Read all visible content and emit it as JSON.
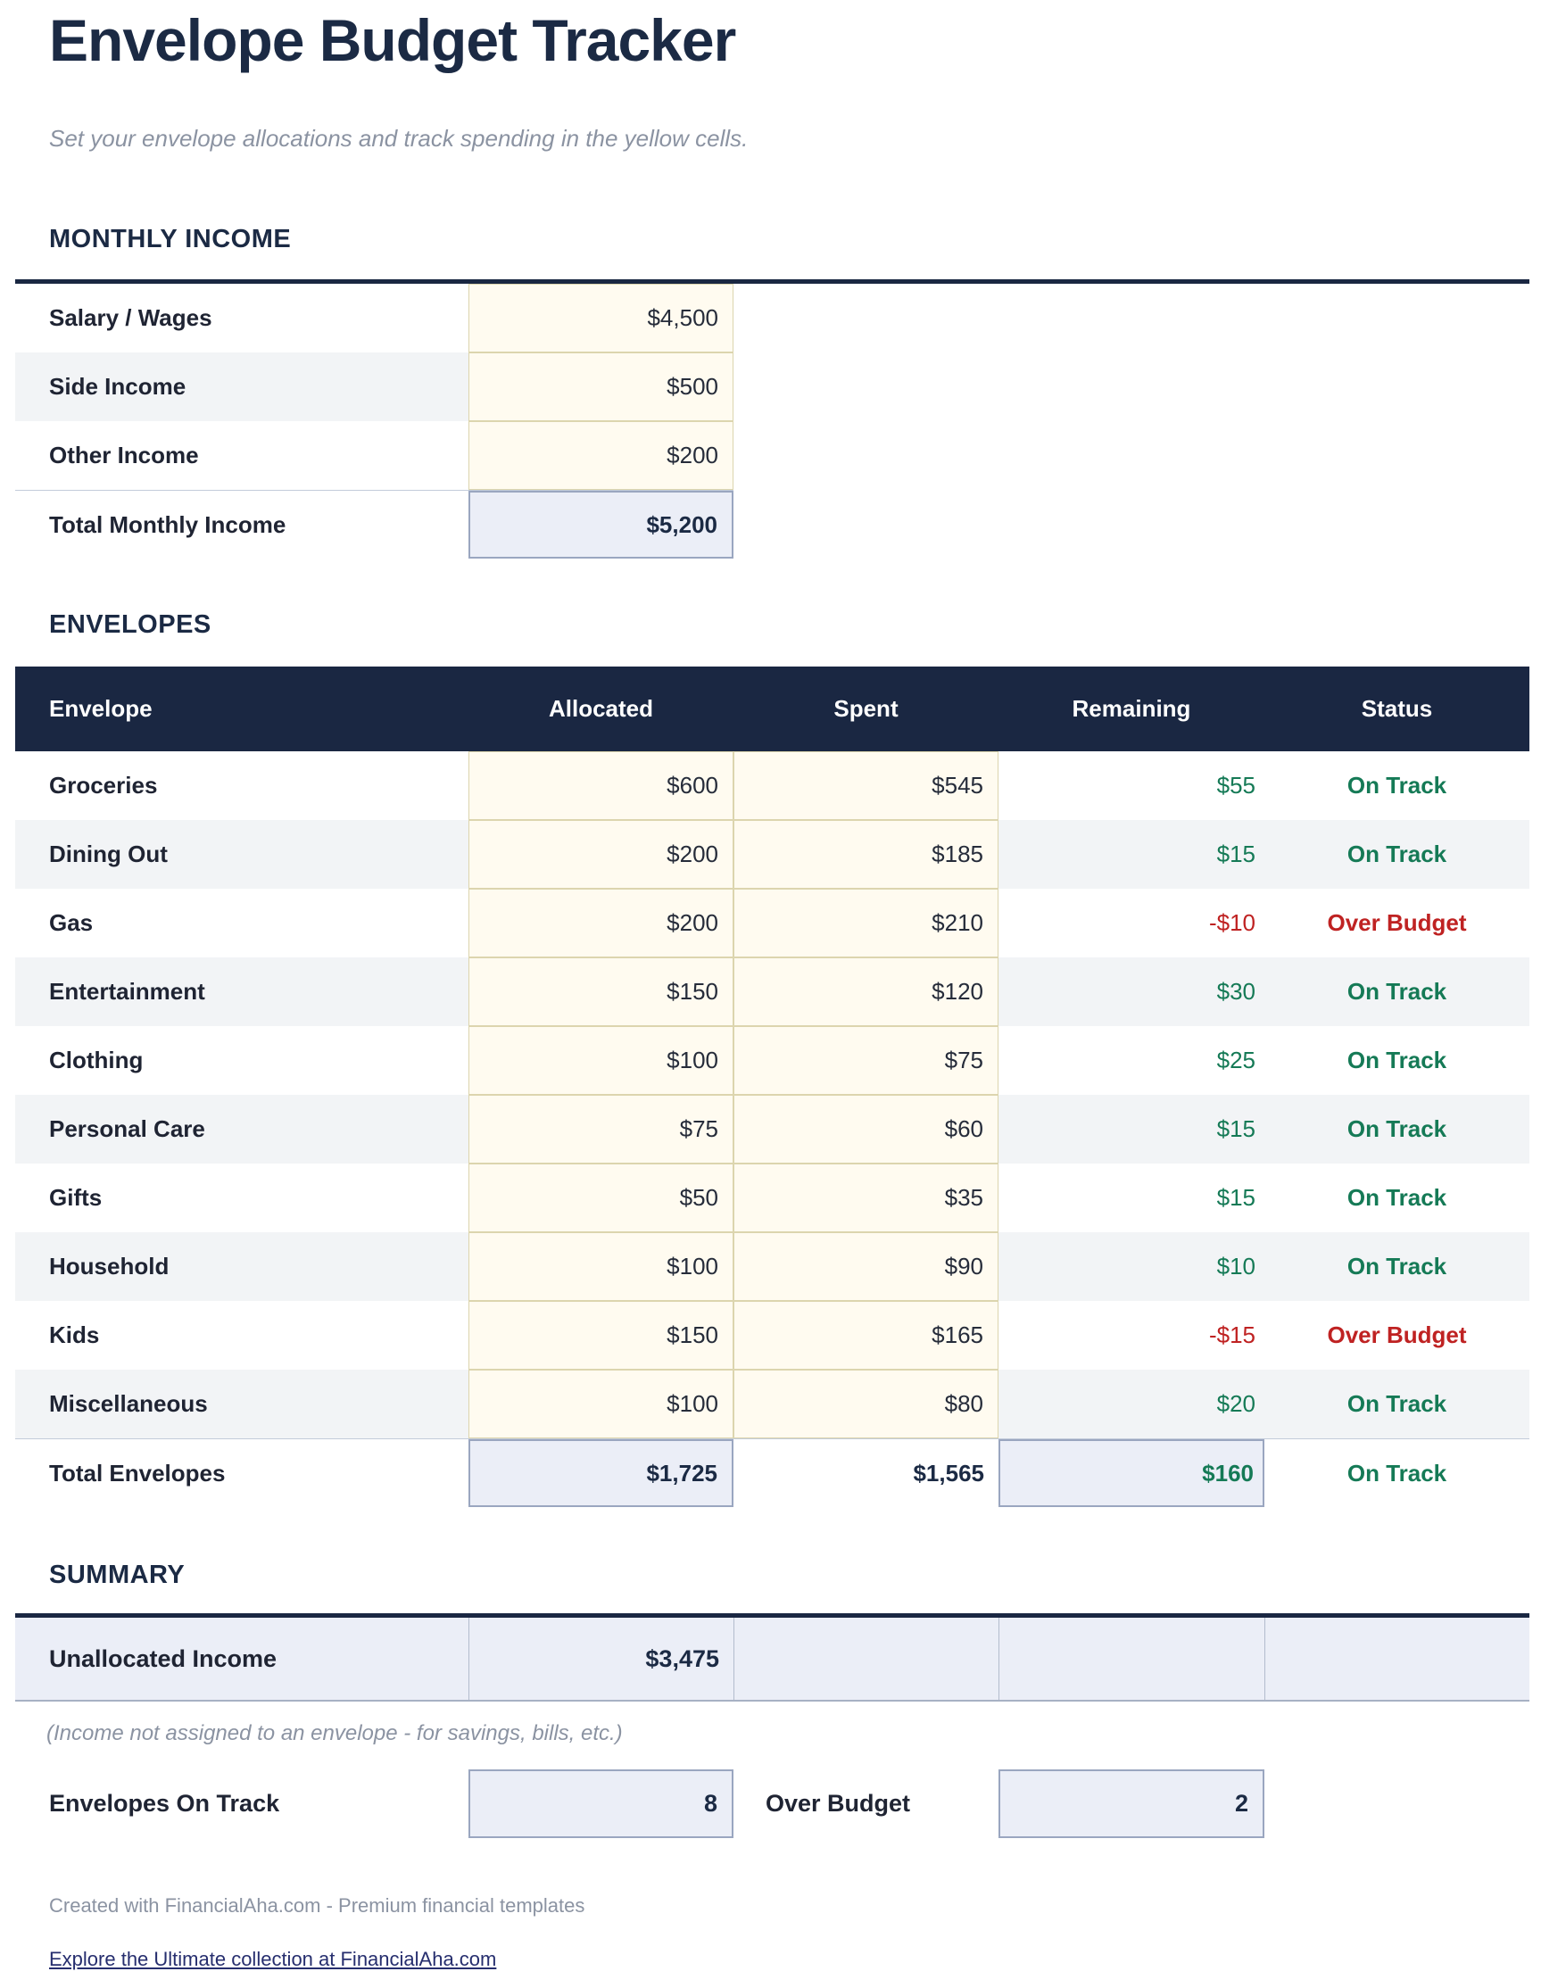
{
  "page": {
    "title": "Envelope Budget Tracker",
    "subtitle": "Set your envelope allocations and track spending in the yellow cells.",
    "footer_credit": "Created with FinancialAha.com - Premium financial templates",
    "footer_link": "Explore the Ultimate collection at FinancialAha.com"
  },
  "colors": {
    "navy_header": "#1a2742",
    "heading_text": "#1b2a44",
    "input_cell_yellow": "#fffbf0",
    "computed_cell_lavender": "#ebeef7",
    "on_track_green": "#157a56",
    "over_budget_red": "#bf2222"
  },
  "monthly_income": {
    "heading": "MONTHLY INCOME",
    "rows": [
      {
        "label": "Salary / Wages",
        "value": "$4,500"
      },
      {
        "label": "Side Income",
        "value": "$500"
      },
      {
        "label": "Other Income",
        "value": "$200"
      }
    ],
    "total": {
      "label": "Total Monthly Income",
      "value": "$5,200"
    }
  },
  "envelopes": {
    "heading": "ENVELOPES",
    "columns": [
      "Envelope",
      "Allocated",
      "Spent",
      "Remaining",
      "Status"
    ],
    "rows": [
      {
        "name": "Groceries",
        "allocated": "$600",
        "spent": "$545",
        "remaining": "$55",
        "status": "On Track",
        "status_type": "ok"
      },
      {
        "name": "Dining Out",
        "allocated": "$200",
        "spent": "$185",
        "remaining": "$15",
        "status": "On Track",
        "status_type": "ok"
      },
      {
        "name": "Gas",
        "allocated": "$200",
        "spent": "$210",
        "remaining": "-$10",
        "status": "Over Budget",
        "status_type": "over"
      },
      {
        "name": "Entertainment",
        "allocated": "$150",
        "spent": "$120",
        "remaining": "$30",
        "status": "On Track",
        "status_type": "ok"
      },
      {
        "name": "Clothing",
        "allocated": "$100",
        "spent": "$75",
        "remaining": "$25",
        "status": "On Track",
        "status_type": "ok"
      },
      {
        "name": "Personal Care",
        "allocated": "$75",
        "spent": "$60",
        "remaining": "$15",
        "status": "On Track",
        "status_type": "ok"
      },
      {
        "name": "Gifts",
        "allocated": "$50",
        "spent": "$35",
        "remaining": "$15",
        "status": "On Track",
        "status_type": "ok"
      },
      {
        "name": "Household",
        "allocated": "$100",
        "spent": "$90",
        "remaining": "$10",
        "status": "On Track",
        "status_type": "ok"
      },
      {
        "name": "Kids",
        "allocated": "$150",
        "spent": "$165",
        "remaining": "-$15",
        "status": "Over Budget",
        "status_type": "over"
      },
      {
        "name": "Miscellaneous",
        "allocated": "$100",
        "spent": "$80",
        "remaining": "$20",
        "status": "On Track",
        "status_type": "ok"
      }
    ],
    "total": {
      "label": "Total Envelopes",
      "allocated": "$1,725",
      "spent": "$1,565",
      "remaining": "$160",
      "status": "On Track",
      "status_type": "ok"
    }
  },
  "summary": {
    "heading": "SUMMARY",
    "unallocated_label": "Unallocated Income",
    "unallocated_value": "$3,475",
    "note": "(Income not assigned to an envelope - for savings, bills, etc.)",
    "on_track_label": "Envelopes On Track",
    "on_track_value": "8",
    "over_budget_label": "Over Budget",
    "over_budget_value": "2"
  }
}
